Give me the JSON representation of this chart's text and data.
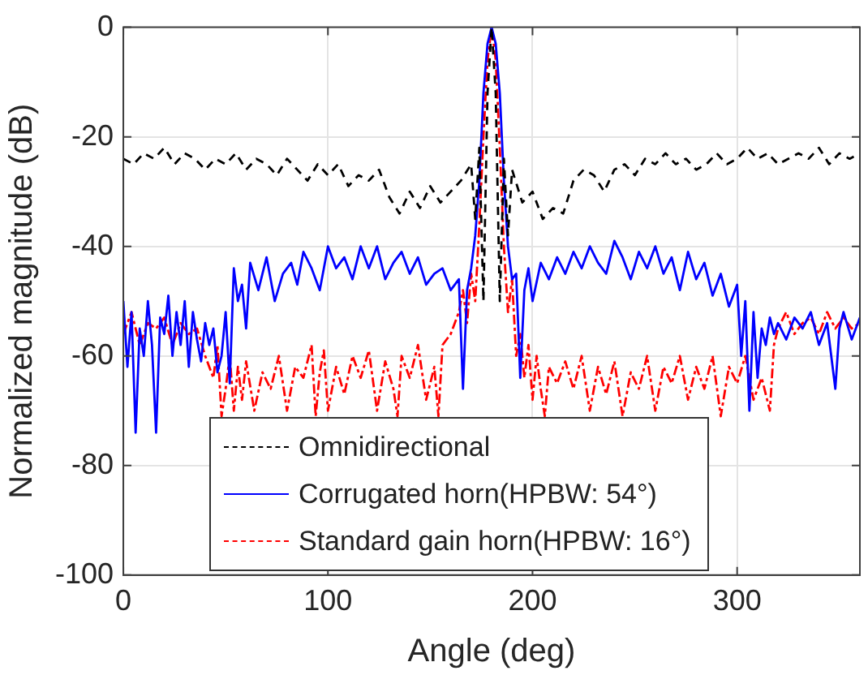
{
  "chart_data": {
    "type": "line",
    "xlabel": "Angle (deg)",
    "ylabel": "Normalized magnitude (dB)",
    "xlim": [
      0,
      360
    ],
    "xticks": [
      0,
      100,
      200,
      300
    ],
    "ylim": [
      -100,
      0
    ],
    "yticks": [
      -100,
      -80,
      -60,
      -40,
      -20,
      0
    ],
    "grid": true,
    "legend": "bottom",
    "marker": "none",
    "series": [
      {
        "name": "Omnidirectional",
        "color": "#000000",
        "line_style": "dashed",
        "x": [
          0,
          5,
          10,
          15,
          20,
          25,
          30,
          35,
          40,
          45,
          50,
          55,
          60,
          65,
          70,
          75,
          80,
          85,
          90,
          95,
          100,
          105,
          110,
          115,
          120,
          125,
          130,
          135,
          140,
          145,
          150,
          155,
          160,
          165,
          170,
          172,
          174,
          176,
          178,
          180,
          182,
          184,
          186,
          188,
          190,
          195,
          200,
          205,
          210,
          215,
          220,
          225,
          230,
          235,
          240,
          245,
          250,
          255,
          260,
          265,
          270,
          275,
          280,
          285,
          290,
          295,
          300,
          305,
          310,
          315,
          320,
          325,
          330,
          335,
          340,
          345,
          350,
          355,
          360
        ],
        "values": [
          -24,
          -25,
          -23,
          -24,
          -22,
          -25,
          -23,
          -24,
          -26,
          -24,
          -25,
          -23,
          -26,
          -24,
          -25,
          -27,
          -24,
          -26,
          -28,
          -25,
          -27,
          -25,
          -29,
          -27,
          -28,
          -26,
          -31,
          -34,
          -30,
          -33,
          -29,
          -32,
          -30,
          -28,
          -25,
          -35,
          -22,
          -50,
          -12,
          0,
          -12,
          -50,
          -24,
          -38,
          -26,
          -32,
          -30,
          -35,
          -33,
          -34,
          -28,
          -26,
          -27,
          -30,
          -26,
          -25,
          -27,
          -24,
          -25,
          -23,
          -25,
          -24,
          -26,
          -25,
          -23,
          -25,
          -24,
          -22,
          -24,
          -23,
          -25,
          -24,
          -23,
          -24,
          -22,
          -25,
          -23,
          -24,
          -23
        ]
      },
      {
        "name": "Corrugated horn(HPBW: 54°)",
        "color": "#0000ff",
        "line_style": "solid",
        "x": [
          0,
          2,
          4,
          6,
          8,
          10,
          12,
          14,
          16,
          18,
          20,
          22,
          24,
          26,
          28,
          30,
          32,
          34,
          36,
          38,
          40,
          42,
          44,
          46,
          48,
          50,
          52,
          54,
          56,
          58,
          60,
          62,
          66,
          70,
          74,
          78,
          82,
          85,
          88,
          92,
          96,
          100,
          104,
          108,
          112,
          116,
          120,
          124,
          128,
          132,
          136,
          140,
          144,
          148,
          152,
          156,
          160,
          164,
          166,
          168,
          170,
          172,
          174,
          176,
          178,
          180,
          182,
          184,
          186,
          188,
          190,
          192,
          194,
          196,
          198,
          200,
          204,
          208,
          212,
          216,
          220,
          224,
          228,
          232,
          236,
          240,
          244,
          248,
          252,
          256,
          260,
          264,
          268,
          272,
          276,
          280,
          284,
          288,
          292,
          296,
          300,
          302,
          304,
          306,
          308,
          310,
          312,
          314,
          316,
          318,
          320,
          324,
          328,
          332,
          336,
          340,
          344,
          348,
          350,
          352,
          356,
          360
        ],
        "values": [
          -50,
          -62,
          -52,
          -74,
          -55,
          -60,
          -50,
          -58,
          -74,
          -53,
          -56,
          -49,
          -60,
          -52,
          -58,
          -50,
          -62,
          -52,
          -57,
          -61,
          -54,
          -58,
          -55,
          -63,
          -60,
          -52,
          -65,
          -44,
          -50,
          -47,
          -55,
          -43,
          -48,
          -42,
          -50,
          -45,
          -43,
          -47,
          -41,
          -44,
          -48,
          -40,
          -44,
          -42,
          -46,
          -40,
          -44,
          -40,
          -46,
          -43,
          -41,
          -45,
          -42,
          -47,
          -45,
          -44,
          -48,
          -46,
          -66,
          -48,
          -44,
          -38,
          -28,
          -12,
          -3,
          0,
          -3,
          -12,
          -28,
          -40,
          -46,
          -45,
          -64,
          -48,
          -44,
          -50,
          -43,
          -46,
          -42,
          -45,
          -41,
          -44,
          -40,
          -43,
          -45,
          -39,
          -42,
          -46,
          -41,
          -44,
          -40,
          -45,
          -42,
          -48,
          -41,
          -46,
          -43,
          -49,
          -45,
          -51,
          -47,
          -60,
          -50,
          -70,
          -52,
          -64,
          -55,
          -58,
          -53,
          -56,
          -54,
          -57,
          -53,
          -55,
          -52,
          -58,
          -54,
          -66,
          -55,
          -52,
          -57,
          -53
        ]
      },
      {
        "name": "Standard gain horn(HPBW: 16°)",
        "color": "#ff0000",
        "line_style": "dashdot",
        "x": [
          0,
          4,
          8,
          12,
          16,
          20,
          24,
          28,
          32,
          36,
          40,
          42,
          44,
          46,
          48,
          50,
          52,
          54,
          56,
          58,
          60,
          64,
          68,
          72,
          76,
          80,
          84,
          88,
          92,
          94,
          96,
          98,
          100,
          104,
          108,
          112,
          116,
          120,
          124,
          128,
          132,
          134,
          136,
          140,
          144,
          148,
          152,
          154,
          156,
          160,
          164,
          166,
          168,
          170,
          172,
          174,
          176,
          178,
          180,
          182,
          184,
          186,
          188,
          190,
          192,
          194,
          196,
          198,
          200,
          202,
          204,
          206,
          208,
          212,
          216,
          220,
          224,
          228,
          232,
          236,
          240,
          244,
          248,
          252,
          256,
          260,
          264,
          268,
          272,
          276,
          280,
          284,
          288,
          292,
          296,
          300,
          304,
          308,
          312,
          316,
          318,
          320,
          324,
          328,
          332,
          336,
          340,
          344,
          348,
          352,
          356,
          360
        ],
        "values": [
          -56,
          -52,
          -58,
          -54,
          -55,
          -53,
          -58,
          -54,
          -56,
          -55,
          -60,
          -62,
          -64,
          -58,
          -71,
          -66,
          -60,
          -70,
          -62,
          -68,
          -61,
          -70,
          -63,
          -66,
          -60,
          -70,
          -62,
          -64,
          -58,
          -71,
          -63,
          -59,
          -70,
          -62,
          -67,
          -60,
          -64,
          -59,
          -70,
          -61,
          -66,
          -71,
          -60,
          -64,
          -58,
          -68,
          -62,
          -71,
          -58,
          -56,
          -52,
          -48,
          -54,
          -45,
          -50,
          -36,
          -20,
          -6,
          0,
          -6,
          -22,
          -40,
          -52,
          -46,
          -60,
          -56,
          -64,
          -58,
          -68,
          -60,
          -66,
          -71,
          -62,
          -65,
          -61,
          -66,
          -60,
          -70,
          -62,
          -67,
          -61,
          -71,
          -63,
          -66,
          -60,
          -70,
          -62,
          -65,
          -60,
          -68,
          -62,
          -66,
          -60,
          -71,
          -62,
          -65,
          -60,
          -68,
          -64,
          -70,
          -58,
          -55,
          -52,
          -56,
          -54,
          -53,
          -56,
          -52,
          -55,
          -53,
          -55,
          -54
        ]
      }
    ]
  }
}
